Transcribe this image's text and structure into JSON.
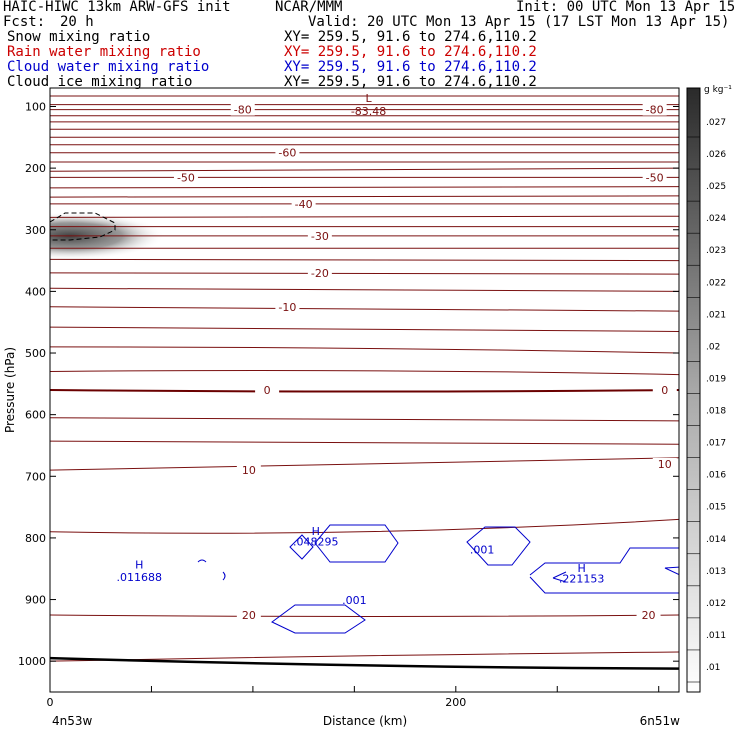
{
  "header": {
    "title_left": "HAIC-HIWC 13km ARW-GFS init",
    "title_center": "NCAR/MMM",
    "init": "Init: 00 UTC Mon 13 Apr 15",
    "fcst_label": "Fcst:",
    "fcst_value": "20 h",
    "valid": "Valid: 20 UTC Mon 13 Apr 15 (17 LST Mon 13 Apr 15)"
  },
  "fields": [
    {
      "name": "Snow mixing ratio",
      "xy": "XY= 259.5, 91.6 to 274.6,110.2",
      "color": "#000000"
    },
    {
      "name": "Rain water mixing ratio",
      "xy": "XY= 259.5, 91.6 to 274.6,110.2",
      "color": "#cc0000"
    },
    {
      "name": "Cloud water mixing ratio",
      "xy": "XY= 259.5, 91.6 to 274.6,110.2",
      "color": "#0000cc"
    },
    {
      "name": "Cloud ice mixing ratio",
      "xy": "XY= 259.5, 91.6 to 274.6,110.2",
      "color": "#000000"
    }
  ],
  "chart_data": {
    "type": "heatmap",
    "xlabel": "Distance (km)",
    "ylabel": "Pressure (hPa)",
    "xlim": [
      0,
      310
    ],
    "ylim": [
      1050,
      70
    ],
    "x_ticks": [
      {
        "value": 0,
        "label": "0"
      },
      {
        "value": 200,
        "label": "200"
      }
    ],
    "x_endpoints": {
      "left": "4n53w",
      "right": "6n51w"
    },
    "y_ticks": [
      {
        "value": 100,
        "label": "100"
      },
      {
        "value": 200,
        "label": "200"
      },
      {
        "value": 300,
        "label": "300"
      },
      {
        "value": 400,
        "label": "400"
      },
      {
        "value": 500,
        "label": "500"
      },
      {
        "value": 600,
        "label": "600"
      },
      {
        "value": 700,
        "label": "700"
      },
      {
        "value": 800,
        "label": "800"
      },
      {
        "value": 900,
        "label": "900"
      },
      {
        "value": 1000,
        "label": "1000"
      }
    ],
    "colorbar": {
      "unit": "g kg⁻¹",
      "labels": [
        ".027",
        ".026",
        ".025",
        ".024",
        ".023",
        ".022",
        ".021",
        ".02",
        ".019",
        ".018",
        ".017",
        ".016",
        ".015",
        ".014",
        ".013",
        ".012",
        ".011",
        ".01"
      ]
    },
    "temperature_contours": {
      "color": "#7a1010",
      "labels": [
        {
          "value": "-80",
          "x": 95,
          "p": 105
        },
        {
          "value": "-80",
          "x": 298,
          "p": 105
        },
        {
          "value": "-60",
          "x": 117,
          "p": 175
        },
        {
          "value": "-50",
          "x": 67,
          "p": 215
        },
        {
          "value": "-50",
          "x": 298,
          "p": 215
        },
        {
          "value": "-40",
          "x": 125,
          "p": 258
        },
        {
          "value": "-30",
          "x": 133,
          "p": 310
        },
        {
          "value": "-20",
          "x": 133,
          "p": 370
        },
        {
          "value": "-10",
          "x": 117,
          "p": 425
        },
        {
          "value": "0",
          "x": 107,
          "p": 560
        },
        {
          "value": "0",
          "x": 303,
          "p": 560
        },
        {
          "value": "10",
          "x": 98,
          "p": 690
        },
        {
          "value": "10",
          "x": 303,
          "p": 680
        },
        {
          "value": "20",
          "x": 98,
          "p": 925
        },
        {
          "value": "20",
          "x": 295,
          "p": 925
        }
      ],
      "lines": [
        {
          "p": [
            83,
            83,
            83
          ]
        },
        {
          "p": [
            97,
            97,
            97
          ]
        },
        {
          "p": [
            105,
            105,
            105
          ]
        },
        {
          "p": [
            115,
            115,
            115
          ]
        },
        {
          "p": [
            125,
            125,
            125
          ]
        },
        {
          "p": [
            137,
            137,
            137
          ]
        },
        {
          "p": [
            150,
            150,
            150
          ]
        },
        {
          "p": [
            162,
            162,
            162
          ]
        },
        {
          "p": [
            175,
            175,
            175
          ]
        },
        {
          "p": [
            190,
            190,
            190
          ]
        },
        {
          "p": [
            205,
            202,
            200
          ]
        },
        {
          "p": [
            215,
            215,
            215
          ]
        },
        {
          "p": [
            232,
            230,
            230
          ]
        },
        {
          "p": [
            247,
            245,
            245
          ]
        },
        {
          "p": [
            258,
            258,
            258
          ]
        },
        {
          "p": [
            280,
            278,
            278
          ]
        },
        {
          "p": [
            295,
            295,
            295
          ]
        },
        {
          "p": [
            310,
            310,
            310
          ]
        },
        {
          "p": [
            330,
            330,
            330
          ]
        },
        {
          "p": [
            348,
            348,
            350
          ]
        },
        {
          "p": [
            370,
            370,
            372
          ]
        },
        {
          "p": [
            395,
            398,
            400
          ]
        },
        {
          "p": [
            425,
            428,
            432
          ]
        },
        {
          "p": [
            458,
            460,
            465
          ]
        },
        {
          "p": [
            490,
            490,
            500
          ]
        },
        {
          "p": [
            530,
            525,
            535
          ]
        },
        {
          "p": [
            605,
            608,
            610
          ]
        },
        {
          "p": [
            643,
            645,
            648
          ]
        },
        {
          "p": [
            690,
            680,
            670
          ]
        },
        {
          "p": [
            790,
            800,
            770
          ]
        },
        {
          "p": [
            925,
            930,
            925
          ]
        },
        {
          "p": [
            1000,
            990,
            985
          ]
        }
      ]
    },
    "freezing_line_p": [
      560,
      565,
      560
    ],
    "surface_p": [
      995,
      1010,
      1012
    ],
    "cloud_water_contours": {
      "color": "#0000cc",
      "labels": [
        {
          "text": "H",
          "x": 44,
          "p": 850
        },
        {
          "text": ".011688",
          "x": 44,
          "p": 870
        },
        {
          "text": "H",
          "x": 131,
          "p": 795
        },
        {
          "text": ".048295",
          "x": 131,
          "p": 812
        },
        {
          "text": ".001",
          "x": 150,
          "p": 907
        },
        {
          "text": ".001",
          "x": 213,
          "p": 825
        },
        {
          "text": "H",
          "x": 262,
          "p": 855
        },
        {
          "text": ".221153",
          "x": 262,
          "p": 872
        }
      ]
    },
    "ice_max": {
      "text": "L",
      "sub": "-83.48",
      "x": 157,
      "p": 80
    }
  }
}
